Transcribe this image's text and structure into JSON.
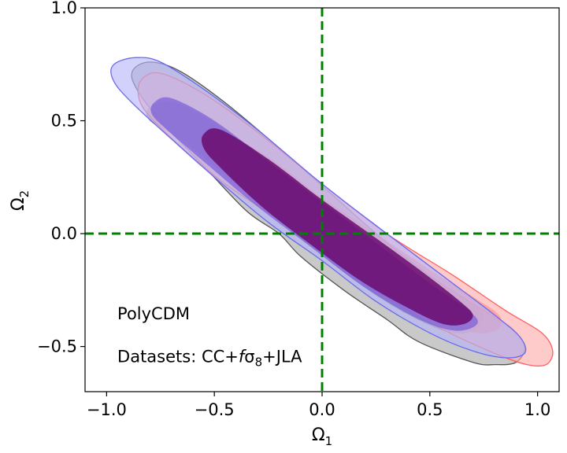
{
  "chart_data": {
    "type": "contour",
    "title": "",
    "xlabel": "Ω1",
    "ylabel": "Ω2",
    "xlim": [
      -1.1,
      1.1
    ],
    "ylim": [
      -0.7,
      1.0
    ],
    "xticks": [
      -1.0,
      -0.5,
      0.0,
      0.5,
      1.0
    ],
    "xtick_labels": [
      "−1.0",
      "−0.5",
      "0.0",
      "0.5",
      "1.0"
    ],
    "yticks": [
      -0.5,
      0.0,
      0.5,
      1.0
    ],
    "ytick_labels": [
      "−0.5",
      "0.0",
      "0.5",
      "1.0"
    ],
    "grid": false,
    "reference_lines": [
      {
        "orientation": "vertical",
        "value": 0.0,
        "color": "#008000",
        "style": "dashed"
      },
      {
        "orientation": "horizontal",
        "value": 0.0,
        "color": "#008000",
        "style": "dashed"
      }
    ],
    "annotations": [
      {
        "text": "PolyCDM",
        "x": -0.95,
        "y": -0.38
      },
      {
        "text_parts": [
          "Datasets: CC+",
          "f",
          "σ",
          "8",
          "+JLA"
        ],
        "x": -0.95,
        "y": -0.57
      }
    ],
    "series": [
      {
        "color": "#555555",
        "fill_2sigma": "#a8a8a8",
        "fill_1sigma": "#808080",
        "outer": [
          [
            -0.88,
            0.72
          ],
          [
            -0.8,
            0.76
          ],
          [
            -0.66,
            0.72
          ],
          [
            -0.45,
            0.58
          ],
          [
            -0.2,
            0.38
          ],
          [
            0.05,
            0.17
          ],
          [
            0.3,
            -0.04
          ],
          [
            0.55,
            -0.22
          ],
          [
            0.75,
            -0.34
          ],
          [
            0.88,
            -0.42
          ],
          [
            0.94,
            -0.5
          ],
          [
            0.9,
            -0.57
          ],
          [
            0.8,
            -0.58
          ],
          [
            0.7,
            -0.57
          ],
          [
            0.45,
            -0.48
          ],
          [
            0.3,
            -0.38
          ],
          [
            0.1,
            -0.25
          ],
          [
            -0.1,
            -0.1
          ],
          [
            -0.2,
            0.0
          ],
          [
            -0.35,
            0.1
          ],
          [
            -0.55,
            0.3
          ],
          [
            -0.75,
            0.5
          ],
          [
            -0.86,
            0.64
          ]
        ],
        "inner": [
          [
            -0.8,
            0.56
          ],
          [
            -0.68,
            0.58
          ],
          [
            -0.45,
            0.46
          ],
          [
            -0.2,
            0.28
          ],
          [
            0.1,
            0.06
          ],
          [
            0.4,
            -0.16
          ],
          [
            0.62,
            -0.28
          ],
          [
            0.74,
            -0.34
          ],
          [
            0.72,
            -0.42
          ],
          [
            0.6,
            -0.44
          ],
          [
            0.4,
            -0.36
          ],
          [
            0.2,
            -0.24
          ],
          [
            0.0,
            -0.1
          ],
          [
            -0.2,
            0.06
          ],
          [
            -0.45,
            0.26
          ],
          [
            -0.66,
            0.42
          ],
          [
            -0.8,
            0.5
          ]
        ]
      },
      {
        "color": "#ff6060",
        "fill_2sigma": "#ffaaaa",
        "fill_1sigma": "#ff8a8a",
        "outer": [
          [
            -0.84,
            0.68
          ],
          [
            -0.75,
            0.71
          ],
          [
            -0.55,
            0.62
          ],
          [
            -0.3,
            0.45
          ],
          [
            0.0,
            0.22
          ],
          [
            0.3,
            0.0
          ],
          [
            0.6,
            -0.18
          ],
          [
            0.85,
            -0.34
          ],
          [
            1.02,
            -0.44
          ],
          [
            1.07,
            -0.52
          ],
          [
            1.04,
            -0.58
          ],
          [
            0.95,
            -0.58
          ],
          [
            0.8,
            -0.53
          ],
          [
            0.55,
            -0.42
          ],
          [
            0.3,
            -0.28
          ],
          [
            0.05,
            -0.12
          ],
          [
            -0.2,
            0.06
          ],
          [
            -0.45,
            0.22
          ],
          [
            -0.65,
            0.38
          ],
          [
            -0.8,
            0.52
          ],
          [
            -0.85,
            0.6
          ]
        ],
        "inner": [
          [
            -0.56,
            0.43
          ],
          [
            -0.48,
            0.46
          ],
          [
            -0.25,
            0.34
          ],
          [
            0.0,
            0.16
          ],
          [
            0.25,
            0.0
          ],
          [
            0.5,
            -0.16
          ],
          [
            0.7,
            -0.28
          ],
          [
            0.82,
            -0.36
          ],
          [
            0.82,
            -0.42
          ],
          [
            0.72,
            -0.44
          ],
          [
            0.55,
            -0.38
          ],
          [
            0.3,
            -0.26
          ],
          [
            0.05,
            -0.1
          ],
          [
            -0.2,
            0.08
          ],
          [
            -0.42,
            0.24
          ],
          [
            -0.54,
            0.34
          ]
        ]
      },
      {
        "color": "#6a6aee",
        "fill_2sigma": "#b4b4f8",
        "fill_1sigma": "#7050d8",
        "outer": [
          [
            -0.98,
            0.72
          ],
          [
            -0.95,
            0.76
          ],
          [
            -0.86,
            0.78
          ],
          [
            -0.75,
            0.76
          ],
          [
            -0.55,
            0.64
          ],
          [
            -0.3,
            0.46
          ],
          [
            0.0,
            0.22
          ],
          [
            0.3,
            0.0
          ],
          [
            0.55,
            -0.18
          ],
          [
            0.8,
            -0.36
          ],
          [
            0.92,
            -0.46
          ],
          [
            0.94,
            -0.53
          ],
          [
            0.85,
            -0.55
          ],
          [
            0.7,
            -0.52
          ],
          [
            0.5,
            -0.44
          ],
          [
            0.25,
            -0.3
          ],
          [
            0.0,
            -0.12
          ],
          [
            -0.25,
            0.05
          ],
          [
            -0.5,
            0.25
          ],
          [
            -0.7,
            0.42
          ],
          [
            -0.85,
            0.55
          ],
          [
            -0.95,
            0.65
          ]
        ],
        "inner": [
          [
            -0.78,
            0.58
          ],
          [
            -0.7,
            0.6
          ],
          [
            -0.5,
            0.5
          ],
          [
            -0.25,
            0.32
          ],
          [
            0.0,
            0.14
          ],
          [
            0.25,
            -0.04
          ],
          [
            0.5,
            -0.22
          ],
          [
            0.68,
            -0.34
          ],
          [
            0.72,
            -0.4
          ],
          [
            0.62,
            -0.43
          ],
          [
            0.45,
            -0.38
          ],
          [
            0.2,
            -0.24
          ],
          [
            -0.05,
            -0.06
          ],
          [
            -0.3,
            0.12
          ],
          [
            -0.55,
            0.32
          ],
          [
            -0.72,
            0.46
          ],
          [
            -0.79,
            0.53
          ]
        ]
      }
    ],
    "overlap_color": "#6a0a6e"
  }
}
